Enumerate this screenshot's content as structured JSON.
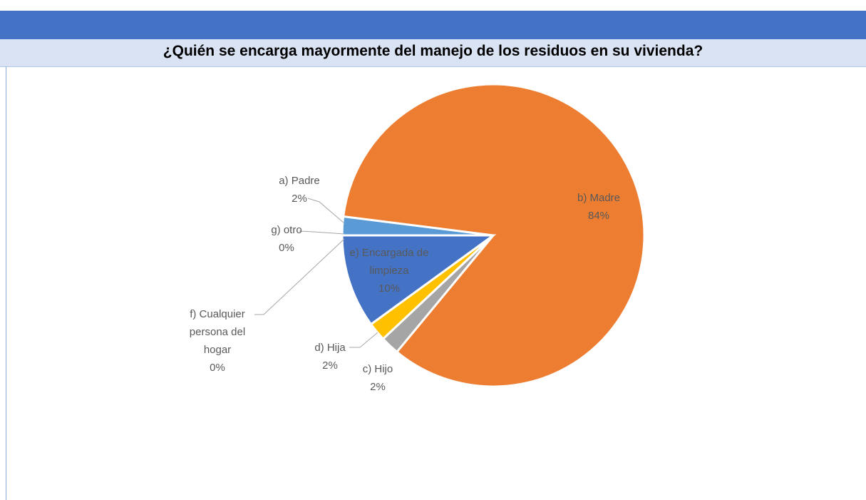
{
  "chart_data": {
    "type": "pie",
    "title": "¿Quién se encarga mayormente del manejo de los residuos en su vivienda?",
    "categories": [
      "a) Padre",
      "b) Madre",
      "c) Hijo",
      "d) Hija",
      "e) Encargada de limpieza",
      "f) Cualquier persona del hogar",
      "g) otro"
    ],
    "values": [
      2,
      84,
      2,
      2,
      10,
      0,
      0
    ],
    "value_labels": [
      "2%",
      "84%",
      "2%",
      "2%",
      "10%",
      "0%",
      "0%"
    ],
    "colors": [
      "#5b9bd5",
      "#ed7d31",
      "#a5a5a5",
      "#ffc000",
      "#4472c4",
      "#70ad47",
      "#264478"
    ]
  }
}
